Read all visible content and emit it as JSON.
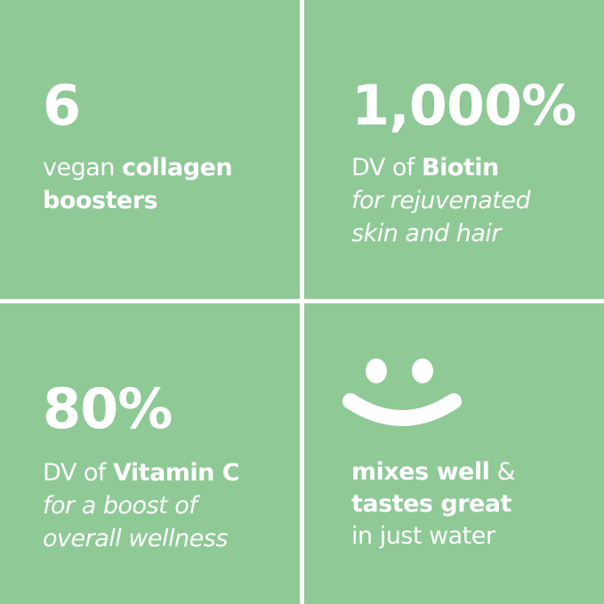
{
  "background_color": "#8ec996",
  "tiles": [
    {
      "stat": "6",
      "line1_regular": "vegan ",
      "line1_bold": "collagen",
      "line2_bold": "boosters"
    },
    {
      "stat": "1,000%",
      "line1_regular": "DV of ",
      "line1_bold": "Biotin",
      "italic1": "for rejuvenated",
      "italic2": "skin and hair"
    },
    {
      "stat": "80%",
      "line1_regular": "DV of ",
      "line1_bold": "Vitamin C",
      "italic1": "for a boost of",
      "italic2": "overall wellness"
    },
    {
      "icon": "smiley-face-icon",
      "line1_bold": "mixes well",
      "line1_regular": " &",
      "line2_bold": "tastes great",
      "line3_regular": "in just water"
    }
  ]
}
